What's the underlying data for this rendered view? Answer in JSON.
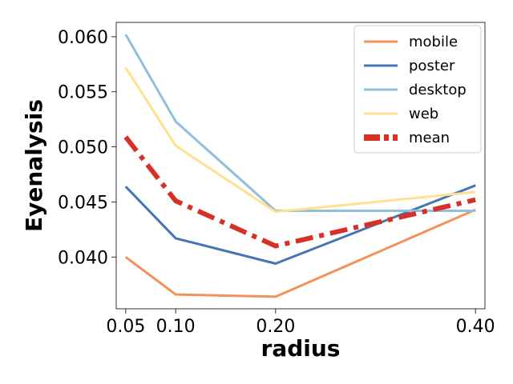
{
  "chart_data": {
    "type": "line",
    "xlabel": "radius",
    "ylabel": "Eyenalysis",
    "x": [
      0.05,
      0.1,
      0.2,
      0.4
    ],
    "x_tick_labels": [
      "0.05",
      "0.10",
      "0.20",
      "0.40"
    ],
    "y_ticks": [
      0.04,
      0.045,
      0.05,
      0.055,
      0.06
    ],
    "y_tick_labels": [
      "0.040",
      "0.045",
      "0.050",
      "0.055",
      "0.060"
    ],
    "xlim": [
      0.0405,
      0.4095
    ],
    "ylim": [
      0.0353,
      0.0613
    ],
    "grid": false,
    "legend_position": "top-right",
    "series": [
      {
        "name": "mobile",
        "color": "#f4915b",
        "style": "solid",
        "values": [
          0.04,
          0.0366,
          0.0364,
          0.0443
        ]
      },
      {
        "name": "poster",
        "color": "#4575b4",
        "style": "solid",
        "values": [
          0.0464,
          0.0417,
          0.0394,
          0.0465
        ]
      },
      {
        "name": "desktop",
        "color": "#91bfdb",
        "style": "solid",
        "values": [
          0.0602,
          0.0523,
          0.0442,
          0.0442
        ]
      },
      {
        "name": "web",
        "color": "#fee090",
        "style": "solid",
        "values": [
          0.0572,
          0.0501,
          0.0441,
          0.0459
        ]
      },
      {
        "name": "mean",
        "color": "#d73027",
        "style": "dashdot",
        "values": [
          0.0509,
          0.0451,
          0.041,
          0.0452
        ]
      }
    ]
  }
}
